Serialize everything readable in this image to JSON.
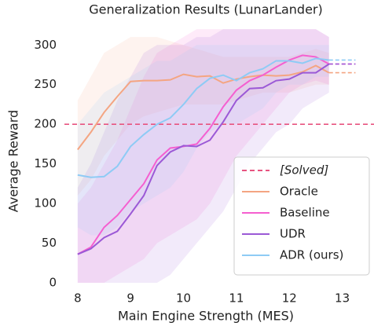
{
  "chart_data": {
    "type": "line",
    "title": "Generalization Results (LunarLander)",
    "xlabel": "Main Engine Strength (MES)",
    "ylabel": "Average Reward",
    "x": [
      8,
      8.25,
      8.5,
      8.75,
      9,
      9.25,
      9.5,
      9.75,
      10,
      10.25,
      10.5,
      10.75,
      11,
      11.25,
      11.5,
      11.75,
      12,
      12.25,
      12.5,
      12.75
    ],
    "series": [
      {
        "name": "Oracle",
        "color": "#f4a582",
        "values": [
          168,
          190,
          215,
          235,
          254,
          255,
          255,
          256,
          263,
          260,
          261,
          252,
          257,
          260,
          262,
          261,
          262,
          266,
          274,
          265
        ],
        "lower": [
          110,
          130,
          160,
          180,
          200,
          210,
          215,
          220,
          225,
          225,
          225,
          225,
          230,
          235,
          240,
          240,
          240,
          245,
          250,
          250
        ],
        "upper": [
          230,
          260,
          290,
          300,
          310,
          310,
          310,
          305,
          300,
          295,
          290,
          285,
          285,
          285,
          285,
          285,
          285,
          290,
          295,
          290
        ]
      },
      {
        "name": "Baseline",
        "color": "#f55fd0",
        "values": [
          36,
          45,
          70,
          85,
          105,
          125,
          155,
          170,
          172,
          175,
          195,
          222,
          243,
          255,
          262,
          272,
          281,
          287,
          285,
          276
        ],
        "lower": [
          0,
          0,
          0,
          10,
          20,
          30,
          50,
          60,
          70,
          80,
          100,
          130,
          160,
          180,
          200,
          220,
          240,
          250,
          255,
          250
        ],
        "upper": [
          100,
          120,
          150,
          180,
          220,
          260,
          290,
          300,
          310,
          320,
          320,
          320,
          320,
          320,
          320,
          320,
          320,
          320,
          320,
          310
        ]
      },
      {
        "name": "UDR",
        "color": "#9b59d6",
        "values": [
          36,
          43,
          57,
          65,
          87,
          110,
          148,
          165,
          173,
          172,
          180,
          203,
          230,
          245,
          246,
          255,
          257,
          265,
          265,
          276
        ],
        "lower": [
          0,
          0,
          0,
          0,
          0,
          0,
          0,
          10,
          30,
          50,
          70,
          90,
          120,
          150,
          170,
          190,
          200,
          220,
          230,
          240
        ],
        "upper": [
          120,
          150,
          190,
          230,
          260,
          290,
          300,
          300,
          300,
          310,
          310,
          320,
          320,
          320,
          320,
          320,
          320,
          320,
          320,
          310
        ]
      },
      {
        "name": "ADR (ours)",
        "color": "#8ecbf5",
        "values": [
          136,
          133,
          134,
          147,
          172,
          187,
          200,
          208,
          225,
          245,
          258,
          262,
          255,
          265,
          270,
          280,
          280,
          277,
          283,
          281
        ],
        "lower": [
          70,
          60,
          60,
          70,
          90,
          100,
          110,
          120,
          140,
          170,
          190,
          200,
          200,
          210,
          220,
          240,
          250,
          250,
          260,
          260
        ],
        "upper": [
          200,
          220,
          240,
          250,
          260,
          270,
          280,
          280,
          290,
          300,
          300,
          300,
          300,
          300,
          300,
          300,
          300,
          300,
          300,
          300
        ]
      }
    ],
    "hline": {
      "value": 200,
      "label": "[Solved]",
      "color": "#e75480"
    },
    "xlim": [
      7.75,
      13.6
    ],
    "xticks": [
      8,
      9,
      10,
      11,
      12,
      13
    ],
    "ylim": [
      0,
      330
    ],
    "yticks": [
      0,
      50,
      100,
      150,
      200,
      250,
      300
    ],
    "legend": "lower right",
    "grid": false
  }
}
